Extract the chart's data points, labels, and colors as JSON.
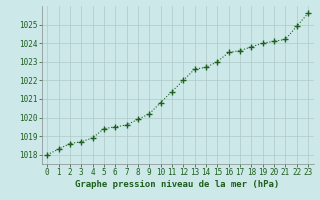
{
  "x": [
    0,
    1,
    2,
    3,
    4,
    5,
    6,
    7,
    8,
    9,
    10,
    11,
    12,
    13,
    14,
    15,
    16,
    17,
    18,
    19,
    20,
    21,
    22,
    23
  ],
  "y": [
    1018.0,
    1018.3,
    1018.6,
    1018.7,
    1018.9,
    1019.4,
    1019.5,
    1019.6,
    1019.9,
    1020.2,
    1020.8,
    1021.4,
    1022.0,
    1022.6,
    1022.7,
    1023.0,
    1023.5,
    1023.6,
    1023.8,
    1024.0,
    1024.1,
    1024.2,
    1024.9,
    1025.6
  ],
  "ylim": [
    1017.5,
    1026.0
  ],
  "yticks": [
    1018,
    1019,
    1020,
    1021,
    1022,
    1023,
    1024,
    1025
  ],
  "xticks": [
    0,
    1,
    2,
    3,
    4,
    5,
    6,
    7,
    8,
    9,
    10,
    11,
    12,
    13,
    14,
    15,
    16,
    17,
    18,
    19,
    20,
    21,
    22,
    23
  ],
  "line_color": "#1e5e1e",
  "marker_color": "#1e5e1e",
  "bg_color": "#cce8e8",
  "grid_color": "#b0c8c8",
  "xlabel": "Graphe pression niveau de la mer (hPa)",
  "xlabel_color": "#1e5e1e",
  "tick_label_color": "#1e5e1e",
  "axis_label_fontsize": 6.5,
  "tick_fontsize": 5.5,
  "marker_size": 2.5,
  "line_width": 0.8
}
